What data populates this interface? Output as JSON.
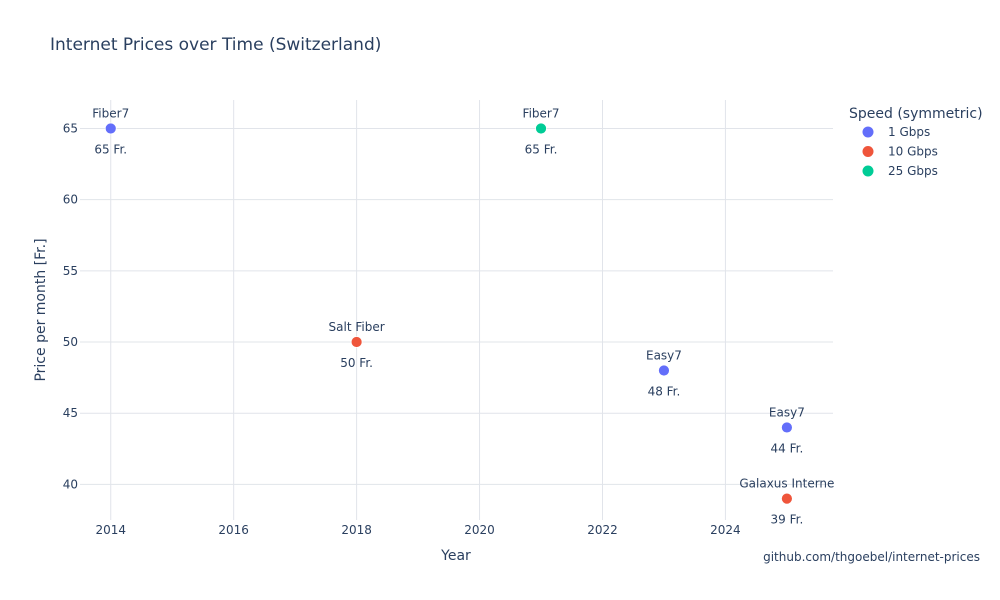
{
  "chart_data": {
    "type": "scatter",
    "title": "Internet Prices over Time (Switzerland)",
    "xlabel": "Year",
    "ylabel": "Price per month [Fr.]",
    "xlim": [
      2013.5,
      2025.75
    ],
    "ylim": [
      37.5,
      67
    ],
    "x_ticks": [
      2014,
      2016,
      2018,
      2020,
      2022,
      2024
    ],
    "y_ticks": [
      40,
      45,
      50,
      55,
      60,
      65
    ],
    "grid": true,
    "legend": {
      "title": "Speed (symmetric)",
      "position": "top-right"
    },
    "series": [
      {
        "name": "1 Gbps",
        "color": "#636efa",
        "points": [
          {
            "x": 2014,
            "y": 65,
            "label": "Fiber7",
            "price_label": "65 Fr."
          },
          {
            "x": 2023,
            "y": 48,
            "label": "Easy7",
            "price_label": "48 Fr."
          },
          {
            "x": 2025,
            "y": 44,
            "label": "Easy7",
            "price_label": "44 Fr."
          }
        ]
      },
      {
        "name": "10 Gbps",
        "color": "#ef553b",
        "points": [
          {
            "x": 2018,
            "y": 50,
            "label": "Salt Fiber",
            "price_label": "50 Fr."
          },
          {
            "x": 2025,
            "y": 39,
            "label": "Galaxus Interne",
            "price_label": "39 Fr."
          }
        ]
      },
      {
        "name": "25 Gbps",
        "color": "#00cc96",
        "points": [
          {
            "x": 2021,
            "y": 65,
            "label": "Fiber7",
            "price_label": "65 Fr."
          }
        ]
      }
    ],
    "annotation": "github.com/thgoebel/internet-prices"
  }
}
